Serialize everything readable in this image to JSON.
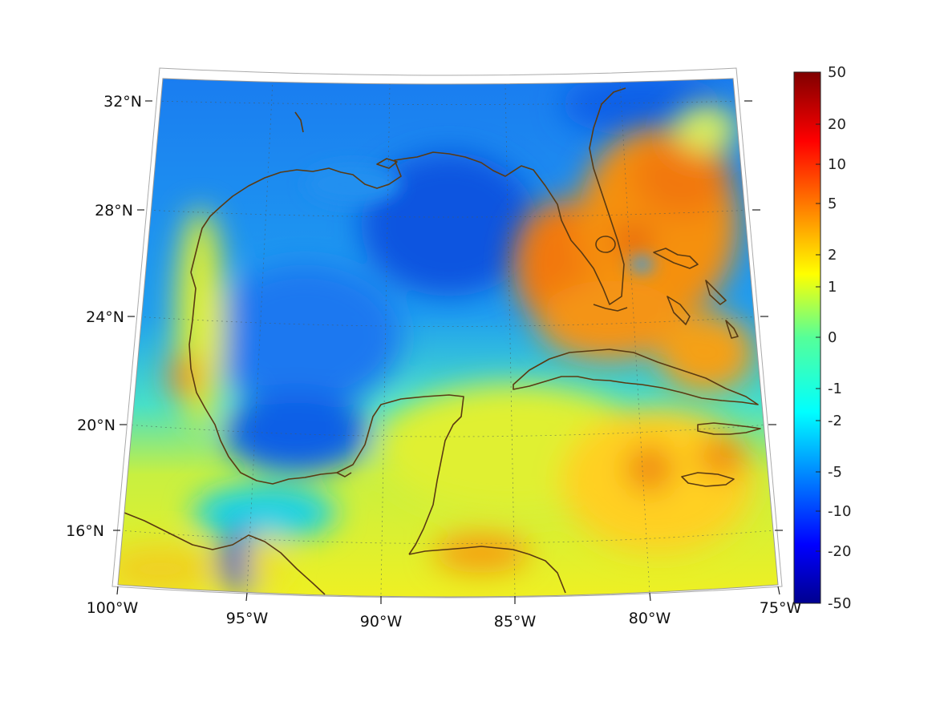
{
  "map": {
    "region": "Gulf of Mexico and Caribbean",
    "projection": "conic",
    "lat_ticks": [
      "32°N",
      "28°N",
      "24°N",
      "20°N",
      "16°N"
    ],
    "lon_ticks": [
      "100°W",
      "95°W",
      "90°W",
      "85°W",
      "80°W",
      "75°W"
    ],
    "coastline_color": "#5a3a12",
    "grid": true
  },
  "colorbar": {
    "tick_labels": [
      "50",
      "20",
      "10",
      "5",
      "2",
      "1",
      "0",
      "-1",
      "-2",
      "-5",
      "-10",
      "-20",
      "-50"
    ],
    "colormap": "jet",
    "scale": "symmetric log"
  }
}
